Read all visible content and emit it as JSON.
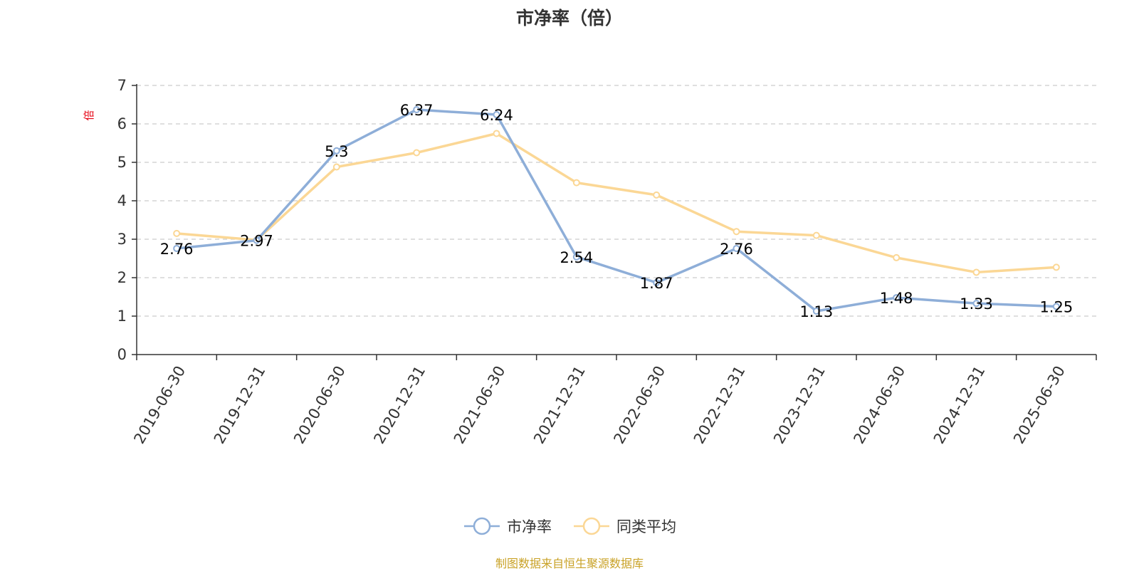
{
  "chart_data": {
    "type": "line",
    "title": "市净率（倍）",
    "ylabel": "倍",
    "ylim": [
      0,
      7
    ],
    "yticks": [
      0,
      1,
      2,
      3,
      4,
      5,
      6,
      7
    ],
    "grid": true,
    "legend_position": "bottom-center",
    "x": [
      "2019-06-30",
      "2019-12-31",
      "2020-06-30",
      "2020-12-31",
      "2021-06-30",
      "2021-12-31",
      "2022-06-30",
      "2022-12-31",
      "2023-12-31",
      "2024-06-30",
      "2024-12-31",
      "2025-06-30"
    ],
    "series": [
      {
        "name": "市净率",
        "color": "#8eaed8",
        "values": [
          2.76,
          2.97,
          5.3,
          6.37,
          6.24,
          2.54,
          1.87,
          2.76,
          1.13,
          1.48,
          1.33,
          1.25
        ],
        "labels": [
          "2.76",
          "2.97",
          "5.3",
          "6.37",
          "6.24",
          "2.54",
          "1.87",
          "2.76",
          "1.13",
          "1.48",
          "1.33",
          "1.25"
        ]
      },
      {
        "name": "同类平均",
        "color": "#fbd795",
        "values": [
          3.15,
          2.98,
          4.88,
          5.25,
          5.75,
          4.47,
          4.15,
          3.2,
          3.1,
          2.52,
          2.14,
          2.27
        ]
      }
    ]
  },
  "footer": {
    "source": "制图数据来自恒生聚源数据库"
  }
}
